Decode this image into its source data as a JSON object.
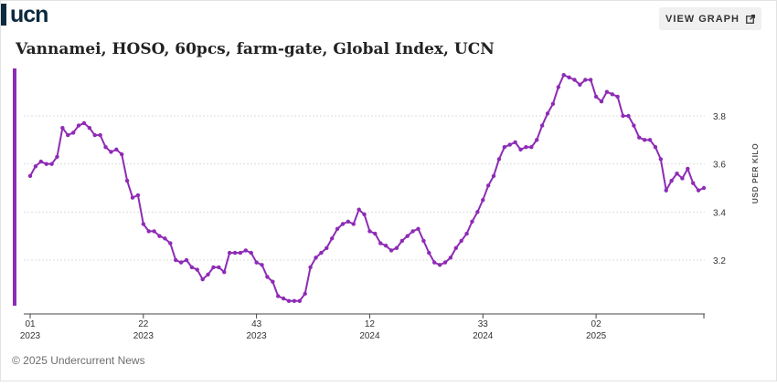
{
  "brand": {
    "name": "ucn"
  },
  "header": {
    "view_graph_label": "VIEW GRAPH",
    "view_graph_icon": "external-link-icon"
  },
  "footer": {
    "copyright": "© 2025 Undercurrent News"
  },
  "colors": {
    "series": "#8e2bb5",
    "brand": "#0d2a3e",
    "grid": "#dddddd"
  },
  "chart_data": {
    "type": "line",
    "title": "Vannamei, HOSO, 60pcs, farm-gate, Global Index, UCN",
    "ylabel": "USD PER KILO",
    "xlabel": "",
    "ylim": [
      3.0,
      3.92
    ],
    "y_ticks": [
      "3.2",
      "3.4",
      "3.6",
      "3.8"
    ],
    "y_tick_values": [
      3.2,
      3.4,
      3.6,
      3.8
    ],
    "grid": true,
    "axis_position": "right",
    "x_tick_labels": [
      {
        "week": "01",
        "year": "2023",
        "index": 0
      },
      {
        "week": "22",
        "year": "2023",
        "index": 21
      },
      {
        "week": "43",
        "year": "2023",
        "index": 42
      },
      {
        "week": "12",
        "year": "2024",
        "index": 63
      },
      {
        "week": "33",
        "year": "2024",
        "index": 84
      },
      {
        "week": "02",
        "year": "2025",
        "index": 105
      }
    ],
    "series": [
      {
        "values": [
          3.55,
          3.59,
          3.61,
          3.6,
          3.6,
          3.63,
          3.75,
          3.72,
          3.73,
          3.76,
          3.77,
          3.75,
          3.72,
          3.72,
          3.67,
          3.65,
          3.66,
          3.64,
          3.53,
          3.46,
          3.47,
          3.35,
          3.32,
          3.32,
          3.3,
          3.29,
          3.27,
          3.2,
          3.19,
          3.2,
          3.17,
          3.16,
          3.12,
          3.14,
          3.17,
          3.17,
          3.15,
          3.23,
          3.23,
          3.23,
          3.24,
          3.23,
          3.19,
          3.18,
          3.13,
          3.11,
          3.05,
          3.04,
          3.03,
          3.03,
          3.03,
          3.06,
          3.17,
          3.21,
          3.23,
          3.25,
          3.29,
          3.33,
          3.35,
          3.36,
          3.35,
          3.41,
          3.39,
          3.32,
          3.31,
          3.27,
          3.26,
          3.24,
          3.25,
          3.28,
          3.3,
          3.32,
          3.33,
          3.28,
          3.23,
          3.19,
          3.18,
          3.19,
          3.21,
          3.25,
          3.28,
          3.31,
          3.36,
          3.4,
          3.45,
          3.51,
          3.55,
          3.62,
          3.67,
          3.68,
          3.69,
          3.66,
          3.67,
          3.67,
          3.7,
          3.76,
          3.81,
          3.85,
          3.92,
          3.97,
          3.96,
          3.95,
          3.93,
          3.95,
          3.95,
          3.88,
          3.86,
          3.9,
          3.89,
          3.88,
          3.8,
          3.8,
          3.76,
          3.71,
          3.7,
          3.7,
          3.67,
          3.62,
          3.49,
          3.53,
          3.56,
          3.54,
          3.58,
          3.52,
          3.49,
          3.5
        ]
      }
    ]
  }
}
